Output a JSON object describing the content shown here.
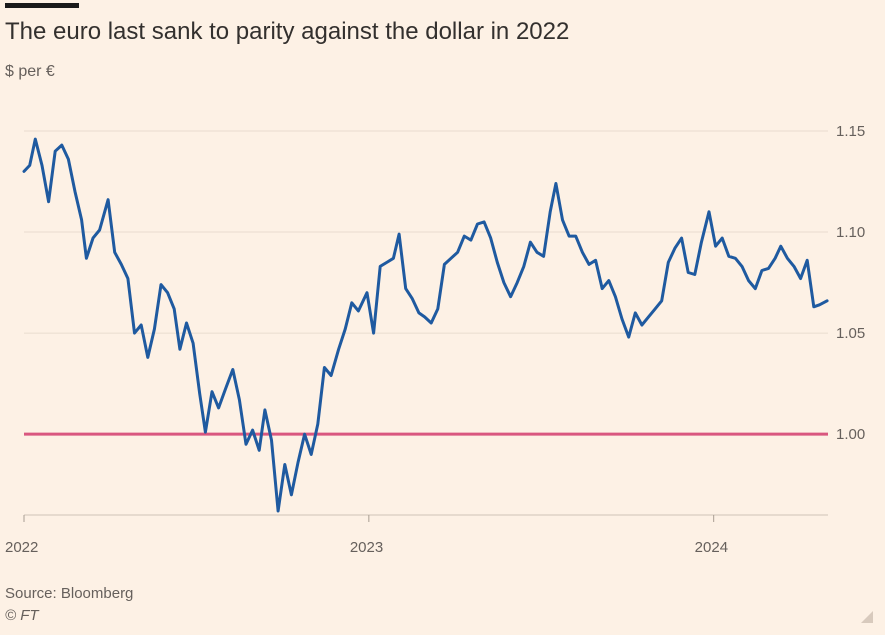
{
  "header": {
    "title": "The euro last sank to parity against the dollar in 2022",
    "subtitle": "$ per €"
  },
  "footer": {
    "source": "Source: Bloomberg",
    "copyright": "© FT"
  },
  "colors": {
    "background": "#fdf1e5",
    "series": "#1f5aa0",
    "reference": "#d9577f",
    "gridline": "#e9dccf",
    "text": "#66605c"
  },
  "chart_data": {
    "type": "line",
    "title": "The euro last sank to parity against the dollar in 2022",
    "ylabel": "$ per €",
    "xlim": [
      "2022-01-01",
      "2024-05-01"
    ],
    "ylim": [
      0.96,
      1.15
    ],
    "grid": true,
    "y_ticks": [
      {
        "value": 1.15,
        "label": "1.15"
      },
      {
        "value": 1.1,
        "label": "1.10"
      },
      {
        "value": 1.05,
        "label": "1.05"
      },
      {
        "value": 1.0,
        "label": "1.00"
      }
    ],
    "x_ticks": [
      {
        "value": "2022-01-01",
        "label": "2022"
      },
      {
        "value": "2023-01-01",
        "label": "2023"
      },
      {
        "value": "2024-01-01",
        "label": "2024"
      }
    ],
    "reference_line": {
      "y": 1.0
    },
    "series": [
      {
        "values": [
          [
            "2022-01-01",
            1.13
          ],
          [
            "2022-01-07",
            1.133
          ],
          [
            "2022-01-13",
            1.146
          ],
          [
            "2022-01-20",
            1.133
          ],
          [
            "2022-01-27",
            1.115
          ],
          [
            "2022-02-03",
            1.14
          ],
          [
            "2022-02-10",
            1.143
          ],
          [
            "2022-02-17",
            1.136
          ],
          [
            "2022-02-24",
            1.12
          ],
          [
            "2022-03-03",
            1.106
          ],
          [
            "2022-03-08",
            1.087
          ],
          [
            "2022-03-15",
            1.097
          ],
          [
            "2022-03-22",
            1.101
          ],
          [
            "2022-03-31",
            1.116
          ],
          [
            "2022-04-07",
            1.09
          ],
          [
            "2022-04-14",
            1.084
          ],
          [
            "2022-04-21",
            1.077
          ],
          [
            "2022-04-28",
            1.05
          ],
          [
            "2022-05-05",
            1.054
          ],
          [
            "2022-05-12",
            1.038
          ],
          [
            "2022-05-19",
            1.052
          ],
          [
            "2022-05-26",
            1.074
          ],
          [
            "2022-06-02",
            1.07
          ],
          [
            "2022-06-09",
            1.062
          ],
          [
            "2022-06-15",
            1.042
          ],
          [
            "2022-06-22",
            1.055
          ],
          [
            "2022-06-29",
            1.045
          ],
          [
            "2022-07-06",
            1.02
          ],
          [
            "2022-07-12",
            1.001
          ],
          [
            "2022-07-19",
            1.021
          ],
          [
            "2022-07-26",
            1.013
          ],
          [
            "2022-08-02",
            1.022
          ],
          [
            "2022-08-10",
            1.032
          ],
          [
            "2022-08-17",
            1.017
          ],
          [
            "2022-08-24",
            0.995
          ],
          [
            "2022-08-31",
            1.002
          ],
          [
            "2022-09-07",
            0.992
          ],
          [
            "2022-09-13",
            1.012
          ],
          [
            "2022-09-20",
            0.997
          ],
          [
            "2022-09-27",
            0.962
          ],
          [
            "2022-10-04",
            0.985
          ],
          [
            "2022-10-11",
            0.97
          ],
          [
            "2022-10-18",
            0.986
          ],
          [
            "2022-10-25",
            1.0
          ],
          [
            "2022-11-01",
            0.99
          ],
          [
            "2022-11-08",
            1.005
          ],
          [
            "2022-11-15",
            1.033
          ],
          [
            "2022-11-22",
            1.029
          ],
          [
            "2022-11-30",
            1.042
          ],
          [
            "2022-12-07",
            1.052
          ],
          [
            "2022-12-14",
            1.065
          ],
          [
            "2022-12-21",
            1.061
          ],
          [
            "2022-12-30",
            1.07
          ],
          [
            "2023-01-06",
            1.05
          ],
          [
            "2023-01-13",
            1.083
          ],
          [
            "2023-01-20",
            1.085
          ],
          [
            "2023-01-27",
            1.087
          ],
          [
            "2023-02-02",
            1.099
          ],
          [
            "2023-02-09",
            1.072
          ],
          [
            "2023-02-16",
            1.067
          ],
          [
            "2023-02-23",
            1.06
          ],
          [
            "2023-03-01",
            1.058
          ],
          [
            "2023-03-08",
            1.055
          ],
          [
            "2023-03-15",
            1.062
          ],
          [
            "2023-03-22",
            1.084
          ],
          [
            "2023-03-29",
            1.087
          ],
          [
            "2023-04-05",
            1.09
          ],
          [
            "2023-04-12",
            1.098
          ],
          [
            "2023-04-19",
            1.096
          ],
          [
            "2023-04-26",
            1.104
          ],
          [
            "2023-05-03",
            1.105
          ],
          [
            "2023-05-10",
            1.097
          ],
          [
            "2023-05-17",
            1.085
          ],
          [
            "2023-05-24",
            1.075
          ],
          [
            "2023-05-31",
            1.068
          ],
          [
            "2023-06-07",
            1.075
          ],
          [
            "2023-06-14",
            1.083
          ],
          [
            "2023-06-21",
            1.095
          ],
          [
            "2023-06-28",
            1.09
          ],
          [
            "2023-07-05",
            1.088
          ],
          [
            "2023-07-12",
            1.11
          ],
          [
            "2023-07-18",
            1.124
          ],
          [
            "2023-07-25",
            1.106
          ],
          [
            "2023-08-01",
            1.098
          ],
          [
            "2023-08-08",
            1.098
          ],
          [
            "2023-08-15",
            1.09
          ],
          [
            "2023-08-22",
            1.084
          ],
          [
            "2023-08-29",
            1.086
          ],
          [
            "2023-09-05",
            1.072
          ],
          [
            "2023-09-12",
            1.076
          ],
          [
            "2023-09-19",
            1.068
          ],
          [
            "2023-09-26",
            1.057
          ],
          [
            "2023-10-03",
            1.048
          ],
          [
            "2023-10-10",
            1.06
          ],
          [
            "2023-10-17",
            1.054
          ],
          [
            "2023-10-24",
            1.058
          ],
          [
            "2023-10-31",
            1.062
          ],
          [
            "2023-11-07",
            1.066
          ],
          [
            "2023-11-14",
            1.085
          ],
          [
            "2023-11-21",
            1.092
          ],
          [
            "2023-11-28",
            1.097
          ],
          [
            "2023-12-05",
            1.08
          ],
          [
            "2023-12-12",
            1.079
          ],
          [
            "2023-12-19",
            1.095
          ],
          [
            "2023-12-27",
            1.11
          ],
          [
            "2024-01-03",
            1.093
          ],
          [
            "2024-01-10",
            1.097
          ],
          [
            "2024-01-17",
            1.088
          ],
          [
            "2024-01-24",
            1.087
          ],
          [
            "2024-01-31",
            1.083
          ],
          [
            "2024-02-07",
            1.076
          ],
          [
            "2024-02-14",
            1.072
          ],
          [
            "2024-02-21",
            1.081
          ],
          [
            "2024-02-28",
            1.082
          ],
          [
            "2024-03-06",
            1.087
          ],
          [
            "2024-03-12",
            1.093
          ],
          [
            "2024-03-19",
            1.087
          ],
          [
            "2024-03-26",
            1.083
          ],
          [
            "2024-04-02",
            1.077
          ],
          [
            "2024-04-09",
            1.086
          ],
          [
            "2024-04-16",
            1.063
          ],
          [
            "2024-04-22",
            1.064
          ],
          [
            "2024-04-30",
            1.066
          ]
        ]
      }
    ]
  }
}
